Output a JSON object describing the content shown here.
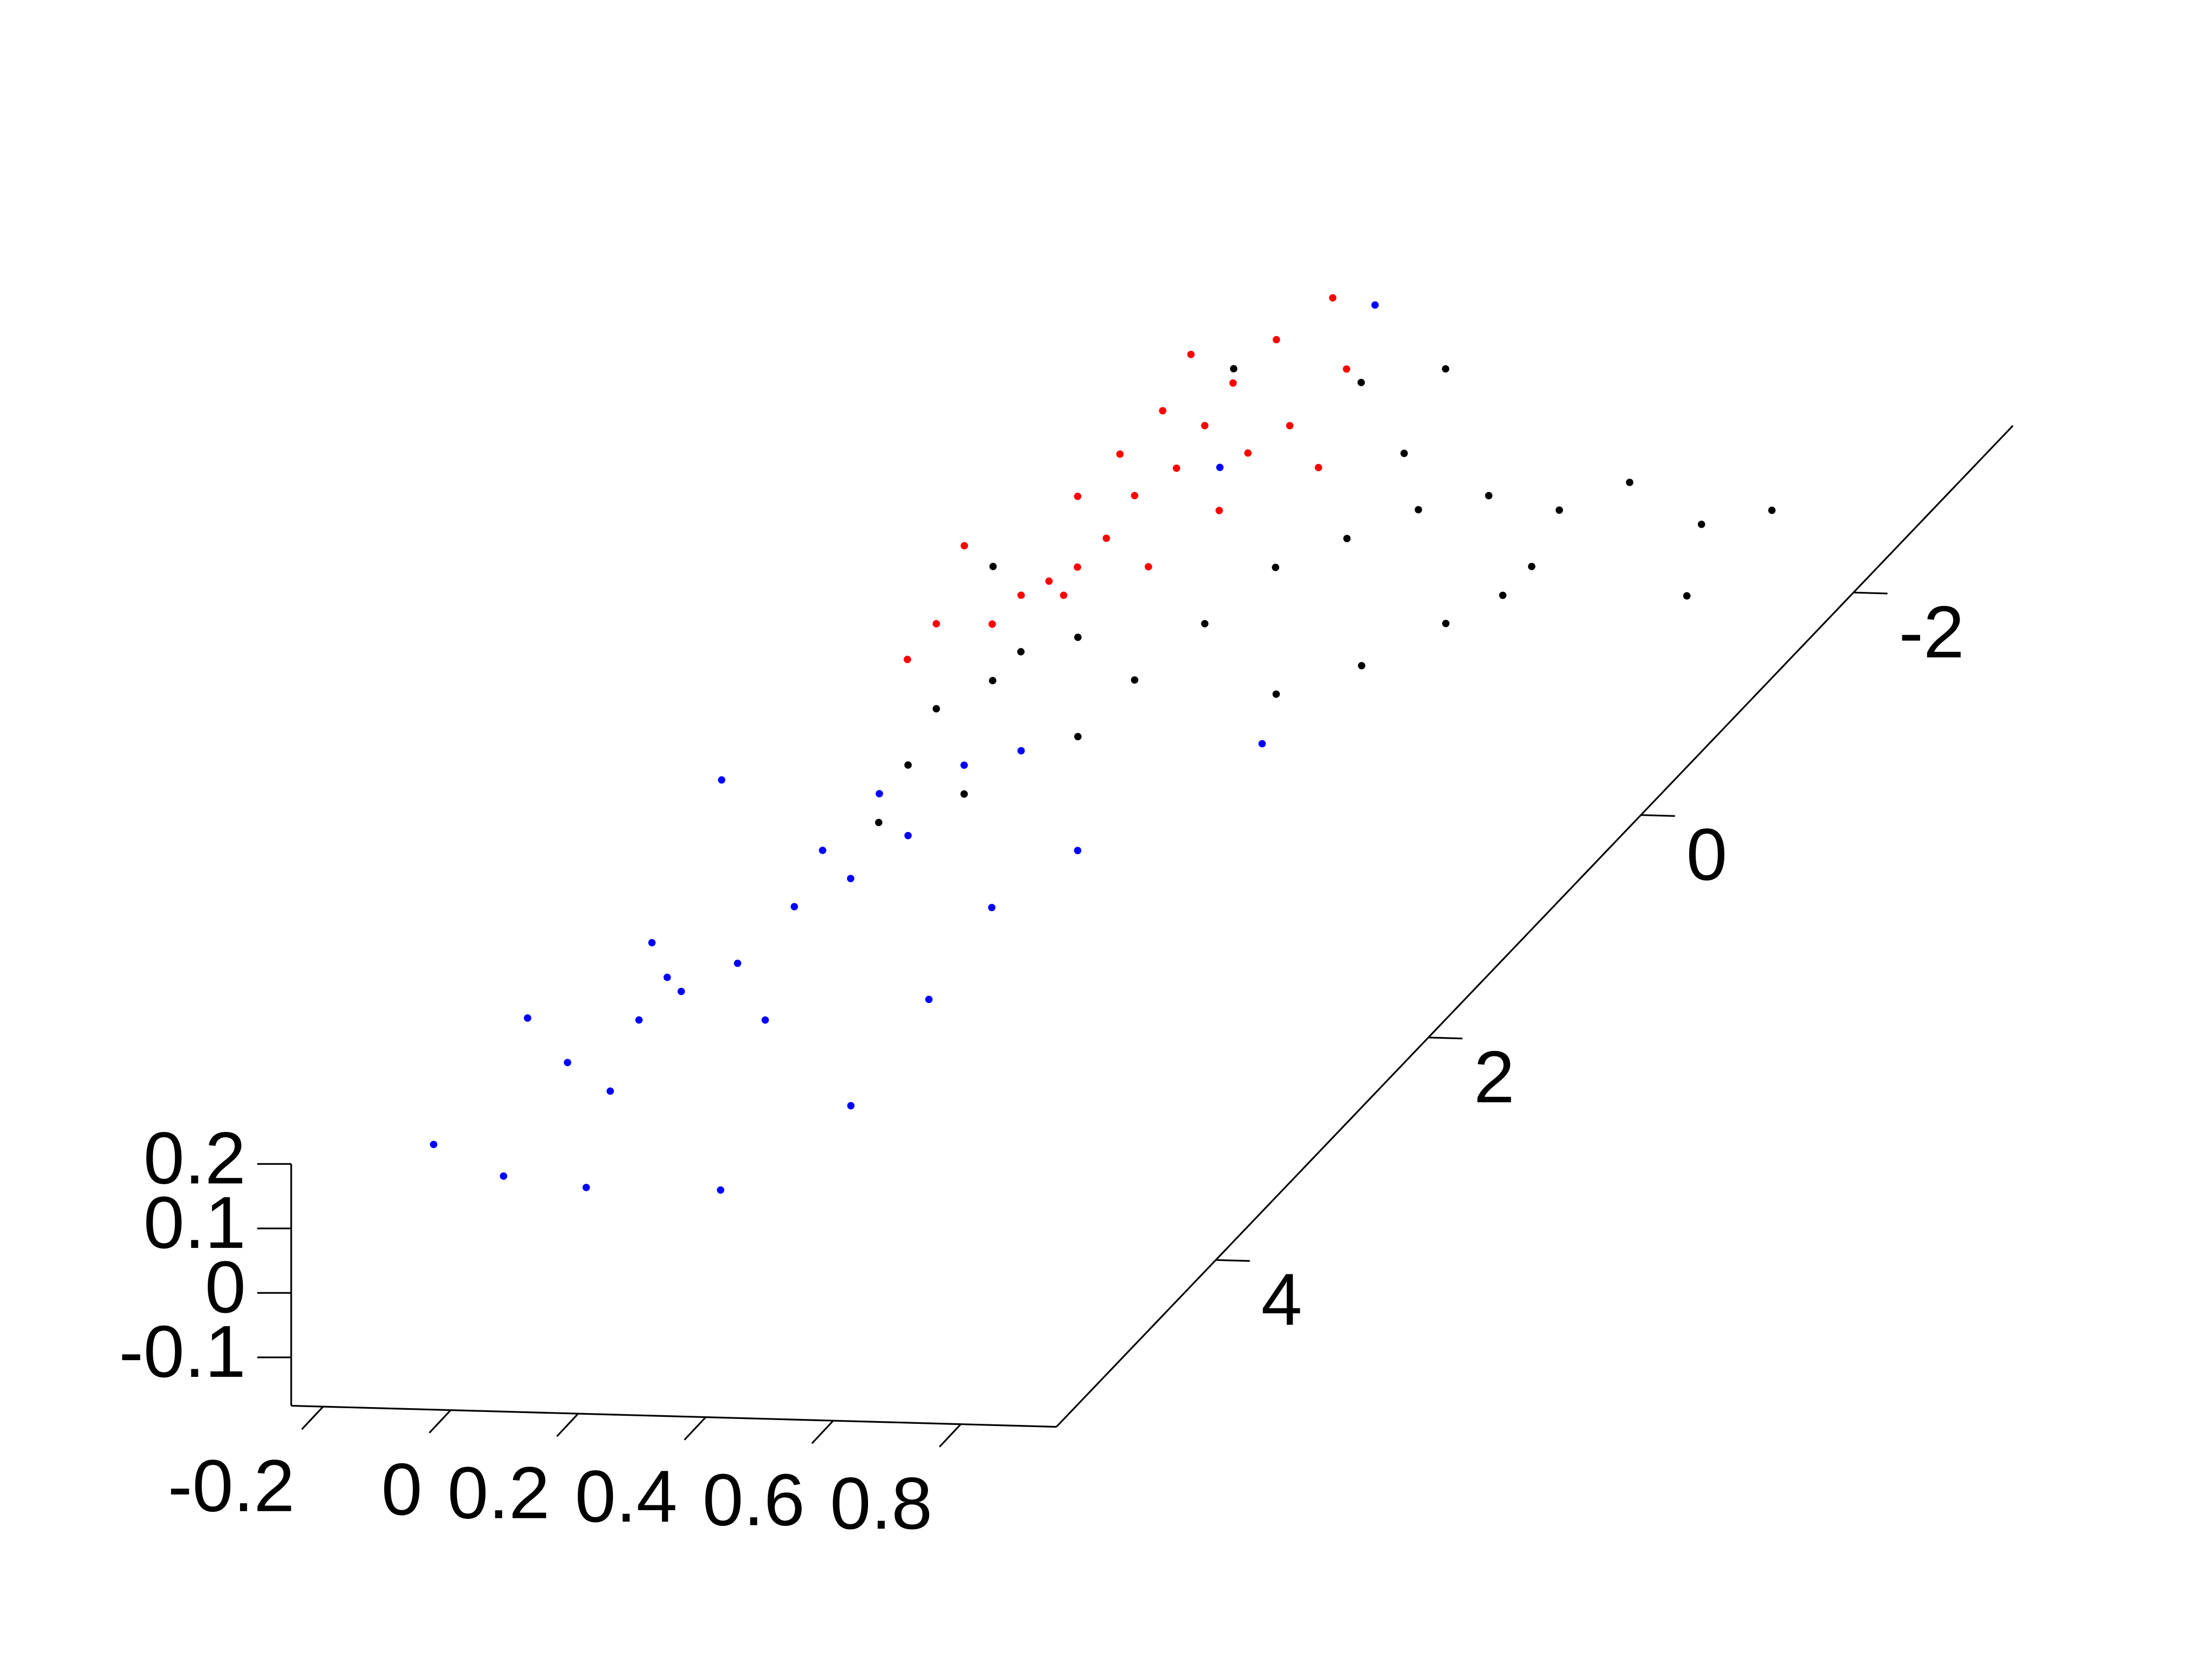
{
  "chart_data": {
    "type": "scatter",
    "xlim": [
      -0.25,
      0.95
    ],
    "ylim": [
      -3.5,
      5.5
    ],
    "zlim": [
      -0.175,
      0.2
    ],
    "xticks": [
      -0.2,
      0,
      0.2,
      0.4,
      0.6,
      0.8
    ],
    "yticks": [
      -2,
      0,
      2,
      4
    ],
    "zticks": [
      -0.1,
      0,
      0.1,
      0.2
    ],
    "series": [
      {
        "color": "#0000ff",
        "x": [
          -0.155,
          -0.002,
          0.141,
          0.35,
          -0.196,
          0.037,
          -0.116,
          -0.2,
          -0.07,
          0.0,
          0.045,
          0.049,
          0.094,
          0.01,
          0.119,
          0.014,
          0.102,
          0.352,
          0.39,
          0.17,
          -0.023,
          0.426,
          0.4,
          0.168,
          0.058,
          0.058,
          0.526,
          -0.042
        ],
        "y": [
          4.73,
          4.99,
          5.07,
          5.06,
          3.6,
          4.22,
          2.91,
          1.75,
          3.98,
          3.33,
          3.07,
          2.56,
          2.3,
          2.06,
          1.91,
          1.55,
          1.28,
          2.52,
          3.34,
          3.56,
          3.59,
          4.29,
          2.0,
          1.14,
          -1.39,
          -2.85,
          1.02,
          3.21
        ],
        "z": [
          0.1,
          0.1,
          0.1,
          0.1,
          0.1,
          0.1,
          0.1,
          0.15,
          0.1,
          0.1,
          0.1,
          0.1,
          0.1,
          0.1,
          0.1,
          0.1,
          0.1,
          0.1,
          0.1,
          0.1,
          0.1,
          0.1,
          0.1,
          0.1,
          0.1,
          0.1,
          0.1,
          0.1
        ]
      },
      {
        "color": "#000000",
        "x": [
          -0.025,
          -0.07,
          -0.024,
          0.042,
          0.191,
          -0.031,
          0.008,
          0.216,
          0.242,
          0.309,
          0.376,
          0.463,
          0.592,
          0.659,
          0.83,
          0.917,
          0.912,
          0.632,
          0.584,
          0.517,
          0.428,
          0.212,
          0.103,
          0.272,
          -0.112,
          -0.191,
          0.187,
          0.097,
          0.63
        ],
        "y": [
          0.25,
          0.51,
          -0.01,
          -0.15,
          0.21,
          1.01,
          1.52,
          -0.3,
          -0.81,
          -1.08,
          -1.35,
          -1.49,
          -1.38,
          -1.64,
          -1.29,
          -1.43,
          -0.66,
          -0.88,
          -0.36,
          0.03,
          0.3,
          -2.59,
          -2.45,
          -1.84,
          -2.54,
          -0.75,
          0.72,
          1.25,
          -0.62
        ],
        "z": [
          0.05,
          0.05,
          0.05,
          0.05,
          0.05,
          0.05,
          0.05,
          0.05,
          0.05,
          0.05,
          0.05,
          0.05,
          0.05,
          0.05,
          0.05,
          0.05,
          0.05,
          0.05,
          0.05,
          0.05,
          0.05,
          0.05,
          0.05,
          0.05,
          0.05,
          0.05,
          0.05,
          0.05,
          0.05
        ]
      },
      {
        "color": "#ff0000",
        "x": [
          0.03,
          0.005,
          0.002,
          0.021,
          0.04,
          0.016,
          0.035,
          0.033,
          0.01,
          -0.012,
          -0.014,
          -0.092,
          -0.171,
          0.127,
          0.151,
          0.155,
          0.167,
          -0.065,
          -0.067,
          -0.07,
          0.053,
          0.256,
          -0.1,
          0.141,
          -0.104
        ],
        "y": [
          -2.62,
          -2.24,
          -1.85,
          -1.47,
          -1.09,
          -0.84,
          -0.46,
          -0.2,
          -0.07,
          0.06,
          0.32,
          0.65,
          -0.36,
          -1.24,
          -1.49,
          -2.0,
          -0.73,
          -1.59,
          -1.2,
          -0.82,
          0.05,
          -1.13,
          0.33,
          -0.22,
          -2.09
        ],
        "z": [
          0.15,
          0.15,
          0.15,
          0.15,
          0.15,
          0.15,
          0.15,
          0.15,
          0.15,
          0.15,
          0.15,
          0.15,
          0.15,
          0.15,
          0.15,
          0.15,
          0.15,
          0.15,
          0.15,
          0.15,
          0.15,
          0.15,
          0.15,
          0.15,
          0.15
        ]
      }
    ]
  }
}
